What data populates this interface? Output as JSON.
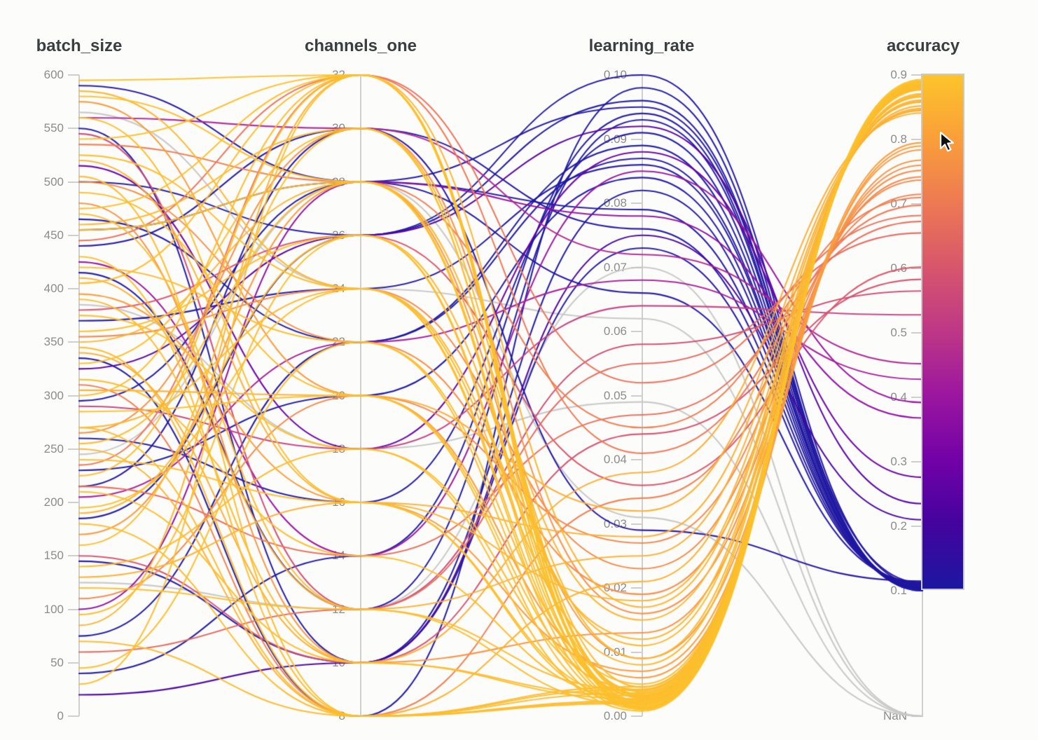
{
  "chart_data": {
    "type": "parallel-coordinates",
    "axes": [
      {
        "key": "batch_size",
        "label": "batch_size",
        "domain": [
          0,
          600
        ],
        "tick_labels": [
          "600",
          "550",
          "500",
          "450",
          "400",
          "350",
          "300",
          "250",
          "200",
          "150",
          "100",
          "50",
          "0"
        ],
        "tick_values": [
          600,
          550,
          500,
          450,
          400,
          350,
          300,
          250,
          200,
          150,
          100,
          50,
          0
        ]
      },
      {
        "key": "channels_one",
        "label": "channels_one",
        "domain": [
          8,
          32
        ],
        "tick_labels": [
          "32",
          "30",
          "28",
          "26",
          "24",
          "22",
          "20",
          "18",
          "16",
          "14",
          "12",
          "10",
          "8"
        ],
        "tick_values": [
          32,
          30,
          28,
          26,
          24,
          22,
          20,
          18,
          16,
          14,
          12,
          10,
          8
        ]
      },
      {
        "key": "learning_rate",
        "label": "learning_rate",
        "domain": [
          0,
          0.1
        ],
        "tick_labels": [
          "0.10",
          "0.09",
          "0.08",
          "0.07",
          "0.06",
          "0.05",
          "0.04",
          "0.03",
          "0.02",
          "0.01",
          "0.00"
        ],
        "tick_values": [
          0.1,
          0.09,
          0.08,
          0.07,
          0.06,
          0.05,
          0.04,
          0.03,
          0.02,
          0.01,
          0.0
        ]
      },
      {
        "key": "accuracy",
        "label": "accuracy",
        "domain": [
          0.1,
          0.9
        ],
        "tick_labels": [
          "0.9",
          "0.8",
          "0.7",
          "0.6",
          "0.5",
          "0.4",
          "0.3",
          "0.2",
          "0.1"
        ],
        "tick_values": [
          0.9,
          0.8,
          0.7,
          0.6,
          0.5,
          0.4,
          0.3,
          0.2,
          0.1
        ],
        "nan_label": "NaN"
      }
    ],
    "color": {
      "by": "accuracy",
      "range": [
        0.1,
        0.9
      ],
      "nan_color": "#c7c7c7",
      "colormap_stops": [
        [
          0.0,
          "#1c17a0"
        ],
        [
          0.13,
          "#45039e"
        ],
        [
          0.25,
          "#7201a8"
        ],
        [
          0.38,
          "#9c179e"
        ],
        [
          0.5,
          "#bd3786"
        ],
        [
          0.63,
          "#d8576b"
        ],
        [
          0.75,
          "#ed7953"
        ],
        [
          0.88,
          "#faa039"
        ],
        [
          1.0,
          "#fcc42b"
        ]
      ]
    },
    "runs_format": [
      "batch_size",
      "channels_one",
      "learning_rate",
      "accuracy"
    ],
    "runs": [
      [
        595,
        32,
        0.0015,
        0.893
      ],
      [
        580,
        28,
        0.002,
        0.889
      ],
      [
        560,
        16,
        0.0025,
        0.887
      ],
      [
        540,
        32,
        0.001,
        0.891
      ],
      [
        525,
        24,
        0.003,
        0.885
      ],
      [
        505,
        8,
        0.002,
        0.884
      ],
      [
        490,
        20,
        0.0035,
        0.886
      ],
      [
        475,
        32,
        0.0012,
        0.89
      ],
      [
        470,
        12,
        0.004,
        0.882
      ],
      [
        455,
        28,
        0.0018,
        0.888
      ],
      [
        430,
        8,
        0.0022,
        0.883
      ],
      [
        420,
        22,
        0.005,
        0.88
      ],
      [
        405,
        32,
        0.0028,
        0.887
      ],
      [
        390,
        10,
        0.0032,
        0.881
      ],
      [
        375,
        18,
        0.0008,
        0.889
      ],
      [
        360,
        26,
        0.0015,
        0.886
      ],
      [
        345,
        8,
        0.0042,
        0.879
      ],
      [
        330,
        30,
        0.0021,
        0.888
      ],
      [
        315,
        14,
        0.0026,
        0.884
      ],
      [
        300,
        32,
        0.0033,
        0.885
      ],
      [
        285,
        20,
        0.0011,
        0.89
      ],
      [
        270,
        8,
        0.0024,
        0.882
      ],
      [
        255,
        28,
        0.0038,
        0.883
      ],
      [
        240,
        16,
        0.0019,
        0.887
      ],
      [
        225,
        32,
        0.0045,
        0.878
      ],
      [
        210,
        10,
        0.0027,
        0.884
      ],
      [
        195,
        24,
        0.0014,
        0.888
      ],
      [
        180,
        8,
        0.0036,
        0.88
      ],
      [
        160,
        30,
        0.0023,
        0.886
      ],
      [
        140,
        18,
        0.0041,
        0.879
      ],
      [
        120,
        12,
        0.0017,
        0.885
      ],
      [
        95,
        26,
        0.0029,
        0.883
      ],
      [
        70,
        8,
        0.0046,
        0.877
      ],
      [
        45,
        22,
        0.0013,
        0.887
      ],
      [
        30,
        32,
        0.0031,
        0.884
      ],
      [
        585,
        24,
        0.012,
        0.866
      ],
      [
        520,
        16,
        0.018,
        0.858
      ],
      [
        460,
        30,
        0.009,
        0.869
      ],
      [
        410,
        12,
        0.025,
        0.848
      ],
      [
        350,
        28,
        0.015,
        0.861
      ],
      [
        305,
        20,
        0.032,
        0.845
      ],
      [
        250,
        8,
        0.021,
        0.852
      ],
      [
        190,
        26,
        0.011,
        0.867
      ],
      [
        130,
        16,
        0.028,
        0.846
      ],
      [
        85,
        32,
        0.017,
        0.859
      ],
      [
        340,
        10,
        0.038,
        0.841
      ],
      [
        270,
        24,
        0.008,
        0.871
      ],
      [
        575,
        20,
        0.006,
        0.79
      ],
      [
        535,
        28,
        0.045,
        0.71
      ],
      [
        480,
        10,
        0.013,
        0.768
      ],
      [
        445,
        32,
        0.052,
        0.682
      ],
      [
        395,
        16,
        0.007,
        0.795
      ],
      [
        355,
        24,
        0.023,
        0.742
      ],
      [
        310,
        8,
        0.034,
        0.715
      ],
      [
        265,
        30,
        0.016,
        0.76
      ],
      [
        215,
        14,
        0.047,
        0.673
      ],
      [
        170,
        28,
        0.009,
        0.784
      ],
      [
        110,
        20,
        0.027,
        0.737
      ],
      [
        60,
        12,
        0.055,
        0.655
      ],
      [
        500,
        22,
        0.019,
        0.752
      ],
      [
        235,
        32,
        0.041,
        0.698
      ],
      [
        545,
        12,
        0.058,
        0.565
      ],
      [
        380,
        26,
        0.036,
        0.602
      ],
      [
        290,
        18,
        0.064,
        0.528
      ],
      [
        150,
        10,
        0.044,
        0.583
      ],
      [
        560,
        30,
        0.072,
        0.452
      ],
      [
        425,
        14,
        0.085,
        0.392
      ],
      [
        205,
        22,
        0.068,
        0.428
      ],
      [
        100,
        28,
        0.078,
        0.368
      ],
      [
        515,
        18,
        0.088,
        0.276
      ],
      [
        325,
        26,
        0.092,
        0.235
      ],
      [
        20,
        10,
        0.075,
        0.21
      ],
      [
        590,
        28,
        0.095,
        0.112
      ],
      [
        550,
        10,
        0.082,
        0.105
      ],
      [
        500,
        26,
        0.1,
        0.108
      ],
      [
        465,
        22,
        0.089,
        0.102
      ],
      [
        440,
        30,
        0.076,
        0.11
      ],
      [
        415,
        12,
        0.093,
        0.104
      ],
      [
        370,
        24,
        0.086,
        0.107
      ],
      [
        335,
        8,
        0.098,
        0.101
      ],
      [
        295,
        28,
        0.079,
        0.109
      ],
      [
        260,
        16,
        0.091,
        0.103
      ],
      [
        230,
        20,
        0.084,
        0.106
      ],
      [
        185,
        26,
        0.096,
        0.1
      ],
      [
        145,
        10,
        0.073,
        0.111
      ],
      [
        75,
        22,
        0.087,
        0.105
      ],
      [
        40,
        14,
        0.094,
        0.102
      ],
      [
        455,
        28,
        0.066,
        0.113
      ],
      [
        215,
        30,
        0.029,
        0.115
      ],
      [
        565,
        24,
        0.062,
        null
      ],
      [
        385,
        18,
        0.049,
        null
      ],
      [
        245,
        28,
        0.031,
        null
      ],
      [
        125,
        12,
        0.07,
        null
      ]
    ]
  },
  "cursor": {
    "visible": true
  }
}
